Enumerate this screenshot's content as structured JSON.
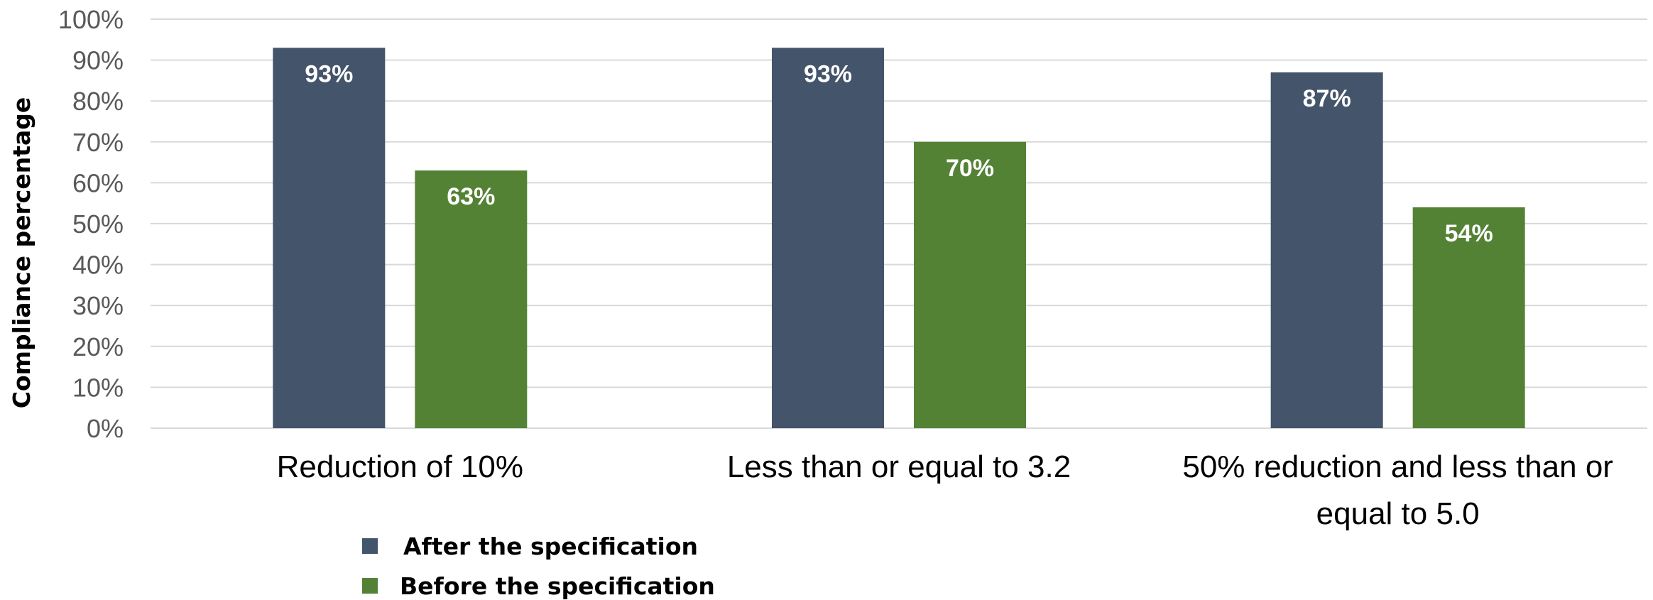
{
  "chart_data": {
    "type": "bar",
    "categories": [
      "Reduction of 10%",
      "Less than or equal to 3.2",
      "50% reduction and less than or equal to 5.0"
    ],
    "series": [
      {
        "name": "After the specification",
        "values": [
          93,
          93,
          87
        ],
        "labels": [
          "93%",
          "93%",
          "87%"
        ],
        "color": "#44546a"
      },
      {
        "name": "Before the specification",
        "values": [
          63,
          70,
          54
        ],
        "labels": [
          "63%",
          "70%",
          "54%"
        ],
        "color": "#548235"
      }
    ],
    "ylabel": "Compliance percentage",
    "xlabel": "",
    "ylim": [
      0,
      100
    ],
    "yticks": [
      "0%",
      "10%",
      "20%",
      "30%",
      "40%",
      "50%",
      "60%",
      "70%",
      "80%",
      "90%",
      "100%"
    ],
    "grid": true,
    "legend_position": "bottom-left"
  }
}
